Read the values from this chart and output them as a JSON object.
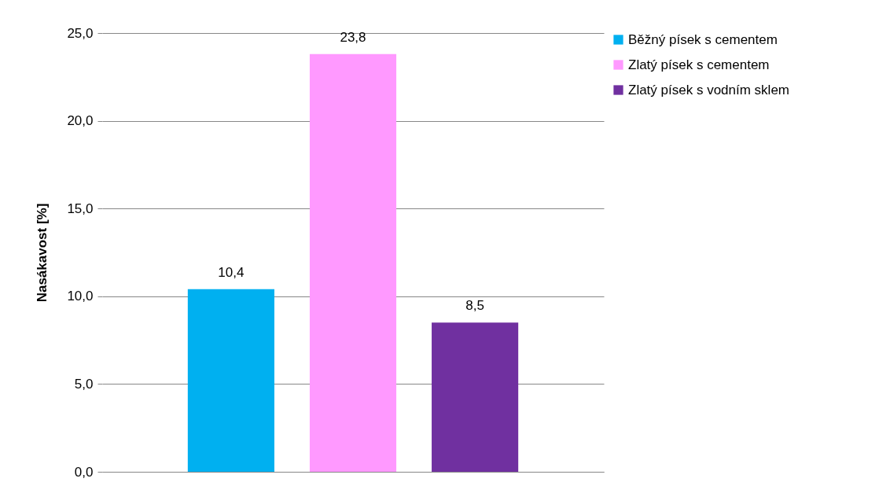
{
  "chart_data": {
    "type": "bar",
    "ylabel": "Nasákavost [%]",
    "categories": [
      null
    ],
    "series": [
      {
        "name": "Běžný písek s cementem",
        "color": "#00b0f0",
        "values": [
          10.4
        ],
        "value_labels": [
          "10,4"
        ]
      },
      {
        "name": "Zlatý písek s cementem",
        "color": "#ff99ff",
        "values": [
          23.8
        ],
        "value_labels": [
          "23,8"
        ]
      },
      {
        "name": "Zlatý písek s vodním sklem",
        "color": "#7030a0",
        "values": [
          8.5
        ],
        "value_labels": [
          "8,5"
        ]
      }
    ],
    "ylim": [
      0,
      25
    ],
    "yticks": [
      {
        "value": 0,
        "label": "0,0"
      },
      {
        "value": 5,
        "label": "5,0"
      },
      {
        "value": 10,
        "label": "10,0"
      },
      {
        "value": 15,
        "label": "15,0"
      },
      {
        "value": 20,
        "label": "20,0"
      },
      {
        "value": 25,
        "label": "25,0"
      }
    ],
    "grid": "y",
    "legend": "right",
    "tick_labels": "y"
  }
}
